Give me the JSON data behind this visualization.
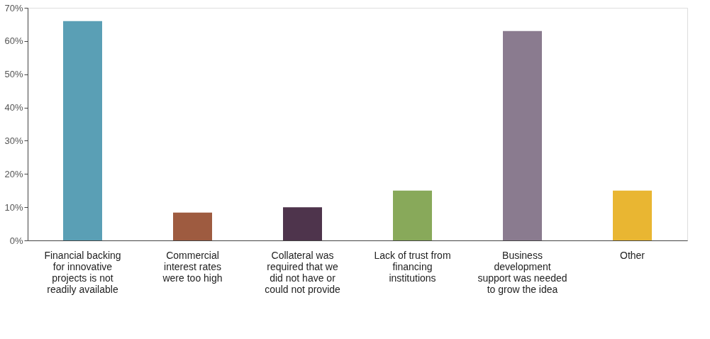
{
  "chart_data": {
    "type": "bar",
    "categories": [
      "Financial backing for innovative projects is not readily available",
      "Commercial interest rates were too high",
      "Collateral was required that we did not have or could not provide",
      "Lack of trust from financing institutions",
      "Business development support was needed to grow the idea",
      "Other"
    ],
    "values": [
      66,
      8.4,
      10,
      15,
      63,
      15
    ],
    "colors": [
      "#5a9fb5",
      "#9e5b40",
      "#4e344c",
      "#88a95a",
      "#8a7b8f",
      "#e9b632"
    ],
    "ylim": [
      0,
      70
    ],
    "yticks": [
      {
        "value": 0,
        "label": "0%"
      },
      {
        "value": 10,
        "label": "10%"
      },
      {
        "value": 20,
        "label": "20%"
      },
      {
        "value": 30,
        "label": "30%"
      },
      {
        "value": 40,
        "label": "40%"
      },
      {
        "value": 50,
        "label": "50%"
      },
      {
        "value": 60,
        "label": "60%"
      },
      {
        "value": 70,
        "label": "70%"
      }
    ],
    "grid": false
  }
}
